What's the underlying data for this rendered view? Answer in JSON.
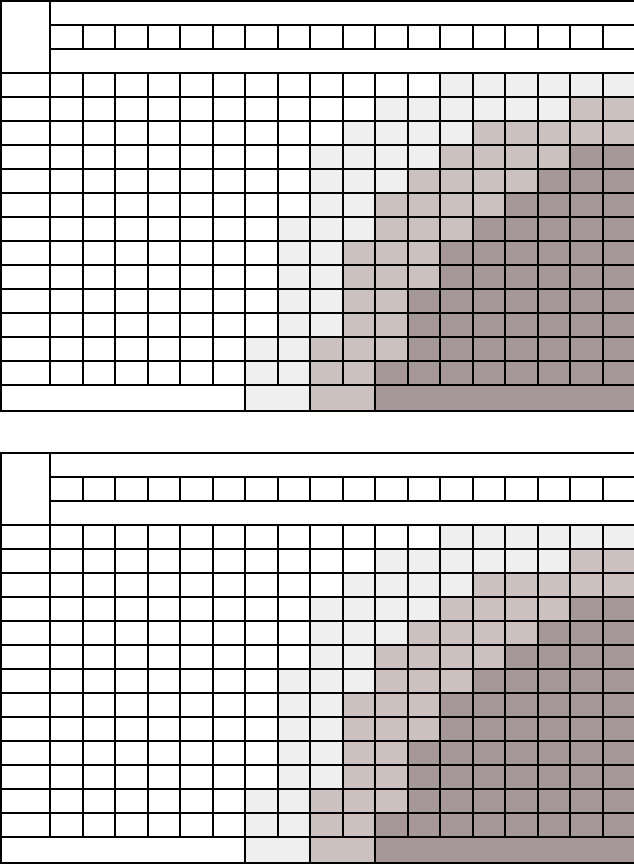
{
  "page": {
    "background": "#ffffff",
    "text_content": "",
    "notes_visible_text": "none — both tables are empty templates with no characters rendered"
  },
  "palette": {
    "level_0": "#ffffff",
    "level_1": "#efefef",
    "level_2": "#cdc1bf",
    "level_3": "#a69899",
    "grid_line": "#000000"
  },
  "chart_data": [
    {
      "type": "heatmap",
      "title": "",
      "position": "upper-table",
      "columns": 18,
      "left_header_column": true,
      "header": {
        "corner_cell_text": "",
        "top_band_text": "",
        "subcells_count": 18,
        "subcells_text": "",
        "bottom_band_text": ""
      },
      "legend": "levels 0-3 encode cell shading: 0=white, 1=light-gray, 2=pink-gray, 3=dark-mauve",
      "rows": [
        "000000000000111111",
        "000000000011111122",
        "000000000111122222",
        "000000001111222233",
        "000000001112222333",
        "000000001122223333",
        "000000011122233333",
        "000000011222333333",
        "000000011222333333",
        "000000011223333333",
        "000000011223333333",
        "000000112223333333",
        "000000112233333333"
      ],
      "footer_segments": [
        {
          "colspan_with_left_column": 7,
          "level": 0,
          "text": ""
        },
        {
          "colspan": 2,
          "level": 1,
          "text": ""
        },
        {
          "colspan": 2,
          "level": 2,
          "text": ""
        },
        {
          "colspan": 8,
          "level": 3,
          "text": ""
        }
      ]
    },
    {
      "type": "heatmap",
      "title": "",
      "position": "lower-table",
      "columns": 18,
      "left_header_column": true,
      "header": {
        "corner_cell_text": "",
        "top_band_text": "",
        "subcells_count": 18,
        "subcells_text": "",
        "bottom_band_text": ""
      },
      "legend": "levels 0-3 encode cell shading: 0=white, 1=light-gray, 2=pink-gray, 3=dark-mauve",
      "rows": [
        "000000000000111111",
        "000000000011111122",
        "000000000111122222",
        "000000001111222233",
        "000000001112222333",
        "000000001122223333",
        "000000011122233333",
        "000000011222333333",
        "000000011222333333",
        "000000011223333333",
        "000000011223333333",
        "000000112223333333",
        "000000112233333333"
      ],
      "footer_segments": [
        {
          "colspan_with_left_column": 7,
          "level": 0,
          "text": ""
        },
        {
          "colspan": 2,
          "level": 1,
          "text": ""
        },
        {
          "colspan": 2,
          "level": 2,
          "text": ""
        },
        {
          "colspan": 8,
          "level": 3,
          "text": ""
        }
      ]
    }
  ]
}
